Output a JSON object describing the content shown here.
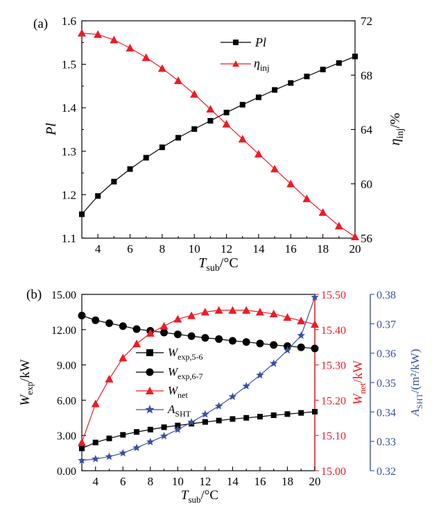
{
  "chart_data": [
    {
      "panel_label": "(a)",
      "type": "line",
      "xlabel_main": "T",
      "xlabel_sub": "sub",
      "xlabel_unit": "/°C",
      "x": [
        3,
        4,
        5,
        6,
        7,
        8,
        9,
        10,
        11,
        12,
        13,
        14,
        15,
        16,
        17,
        18,
        19,
        20
      ],
      "xlim": [
        3,
        20
      ],
      "xticks": [
        "4",
        "6",
        "8",
        "10",
        "12",
        "14",
        "16",
        "18",
        "20"
      ],
      "ylabel_left": "Pl",
      "ylim_left": [
        1.1,
        1.6
      ],
      "yticks_left": [
        "1.1",
        "1.2",
        "1.3",
        "1.4",
        "1.5",
        "1.6"
      ],
      "ylabel_right_main": "η",
      "ylabel_right_sub": "inj",
      "ylabel_right_unit": "/%",
      "ylim_right": [
        56,
        72
      ],
      "yticks_right": [
        "56",
        "60",
        "64",
        "68",
        "72"
      ],
      "series": [
        {
          "name": "Pl",
          "axis": "left",
          "color": "#000000",
          "marker": "square",
          "values": [
            1.155,
            1.197,
            1.23,
            1.259,
            1.285,
            1.309,
            1.331,
            1.351,
            1.37,
            1.389,
            1.407,
            1.424,
            1.441,
            1.457,
            1.472,
            1.488,
            1.503,
            1.518
          ]
        },
        {
          "name_main": "η",
          "name_sub": "inj",
          "axis": "right",
          "color": "#ed1c24",
          "marker": "triangle",
          "values": [
            71.1,
            71.0,
            70.6,
            70.0,
            69.3,
            68.5,
            67.6,
            66.6,
            65.5,
            64.4,
            63.3,
            62.2,
            61.1,
            60.0,
            58.9,
            57.9,
            56.9,
            56.1
          ]
        }
      ]
    },
    {
      "panel_label": "(b)",
      "type": "line",
      "xlabel_main": "T",
      "xlabel_sub": "sub",
      "xlabel_unit": "/°C",
      "x": [
        3,
        4,
        5,
        6,
        7,
        8,
        9,
        10,
        11,
        12,
        13,
        14,
        15,
        16,
        17,
        18,
        19,
        20
      ],
      "xlim": [
        3,
        20
      ],
      "xticks": [
        "4",
        "6",
        "8",
        "10",
        "12",
        "14",
        "16",
        "18",
        "20"
      ],
      "ylabel_left_main": "W",
      "ylabel_left_sub": "exp",
      "ylabel_left_unit": "/kW",
      "ylim_left": [
        0,
        15
      ],
      "yticks_left": [
        "0.00",
        "3.00",
        "6.00",
        "9.00",
        "12.00",
        "15.00"
      ],
      "ylabel_mid_main": "W",
      "ylabel_mid_sub": "net",
      "ylabel_mid_unit": "/kW",
      "ylim_mid": [
        15.0,
        15.5
      ],
      "yticks_mid": [
        "15.00",
        "15.10",
        "15.20",
        "15.30",
        "15.40",
        "15.50"
      ],
      "ylabel_right_main": "A",
      "ylabel_right_sub": "SHT",
      "ylabel_right_unit": "/(m²/kW)",
      "ylim_right": [
        0.32,
        0.38
      ],
      "yticks_right": [
        "0.32",
        "0.33",
        "0.34",
        "0.35",
        "0.36",
        "0.37",
        "0.38"
      ],
      "series": [
        {
          "name_main": "W",
          "name_sub": "exp,5-6",
          "axis": "left",
          "color": "#000000",
          "marker": "square",
          "values": [
            1.9,
            2.4,
            2.75,
            3.05,
            3.3,
            3.5,
            3.7,
            3.85,
            4.0,
            4.15,
            4.27,
            4.4,
            4.5,
            4.6,
            4.72,
            4.82,
            4.92,
            5.02
          ]
        },
        {
          "name_main": "W",
          "name_sub": "exp,6-7",
          "axis": "left",
          "color": "#000000",
          "marker": "circle",
          "values": [
            13.2,
            12.8,
            12.55,
            12.3,
            12.05,
            11.9,
            11.75,
            11.6,
            11.45,
            11.3,
            11.2,
            11.05,
            10.95,
            10.82,
            10.7,
            10.6,
            10.5,
            10.4
          ]
        },
        {
          "name_main": "W",
          "name_sub": "net",
          "axis": "mid",
          "color": "#ed1c24",
          "marker": "triangle",
          "values": [
            15.08,
            15.19,
            15.26,
            15.32,
            15.36,
            15.39,
            15.41,
            15.43,
            15.44,
            15.45,
            15.455,
            15.455,
            15.455,
            15.45,
            15.445,
            15.435,
            15.425,
            15.415
          ]
        },
        {
          "name_main": "A",
          "name_sub": "SHT",
          "axis": "right",
          "color": "#3a4fa3",
          "marker": "star",
          "values": [
            0.3235,
            0.324,
            0.3248,
            0.326,
            0.3278,
            0.3298,
            0.3318,
            0.334,
            0.3365,
            0.3392,
            0.342,
            0.3452,
            0.3488,
            0.3525,
            0.3565,
            0.361,
            0.366,
            0.379
          ]
        }
      ]
    }
  ]
}
